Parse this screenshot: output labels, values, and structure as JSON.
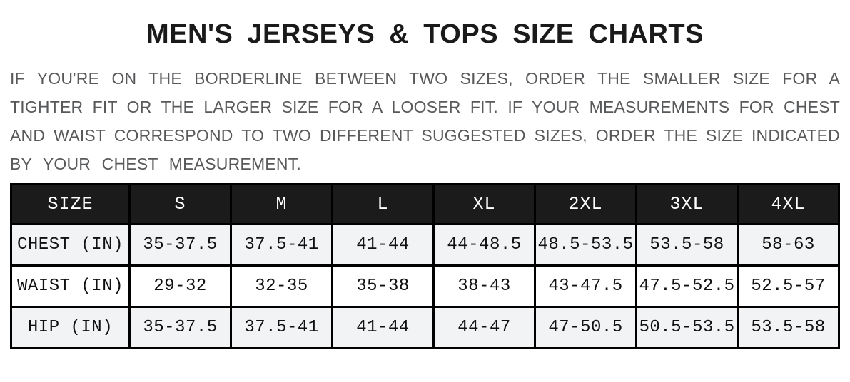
{
  "page": {
    "title": "MEN'S JERSEYS & TOPS SIZE CHARTS",
    "intro_lines": [
      "IF YOU'RE ON THE BORDERLINE BETWEEN TWO SIZES, ORDER THE SMALLER SIZE FOR A",
      "TIGHTER FIT OR THE LARGER SIZE FOR A LOOSER FIT. IF YOUR MEASUREMENTS FOR CHEST",
      "AND WAIST CORRESPOND TO TWO DIFFERENT SUGGESTED SIZES, ORDER THE SIZE INDICATED",
      "BY YOUR CHEST MEASUREMENT."
    ]
  },
  "size_chart": {
    "headers": [
      "SIZE",
      "S",
      "M",
      "L",
      "XL",
      "2XL",
      "3XL",
      "4XL"
    ],
    "rows": [
      {
        "label": "CHEST (IN)",
        "values": [
          "35-37.5",
          "37.5-41",
          "41-44",
          "44-48.5",
          "48.5-53.5",
          "53.5-58",
          "58-63"
        ]
      },
      {
        "label": "WAIST (IN)",
        "values": [
          "29-32",
          "32-35",
          "35-38",
          "38-43",
          "43-47.5",
          "47.5-52.5",
          "52.5-57"
        ]
      },
      {
        "label": "HIP (IN)",
        "values": [
          "35-37.5",
          "37.5-41",
          "41-44",
          "44-47",
          "47-50.5",
          "50.5-53.5",
          "53.5-58"
        ]
      }
    ]
  },
  "colors": {
    "title_text": "#1a1a1a",
    "intro_text": "#58595b",
    "header_bg": "#1b1b1b",
    "header_text": "#ffffff",
    "border": "#000000",
    "row_stripe": "#f2f3f5",
    "row_plain": "#ffffff"
  }
}
